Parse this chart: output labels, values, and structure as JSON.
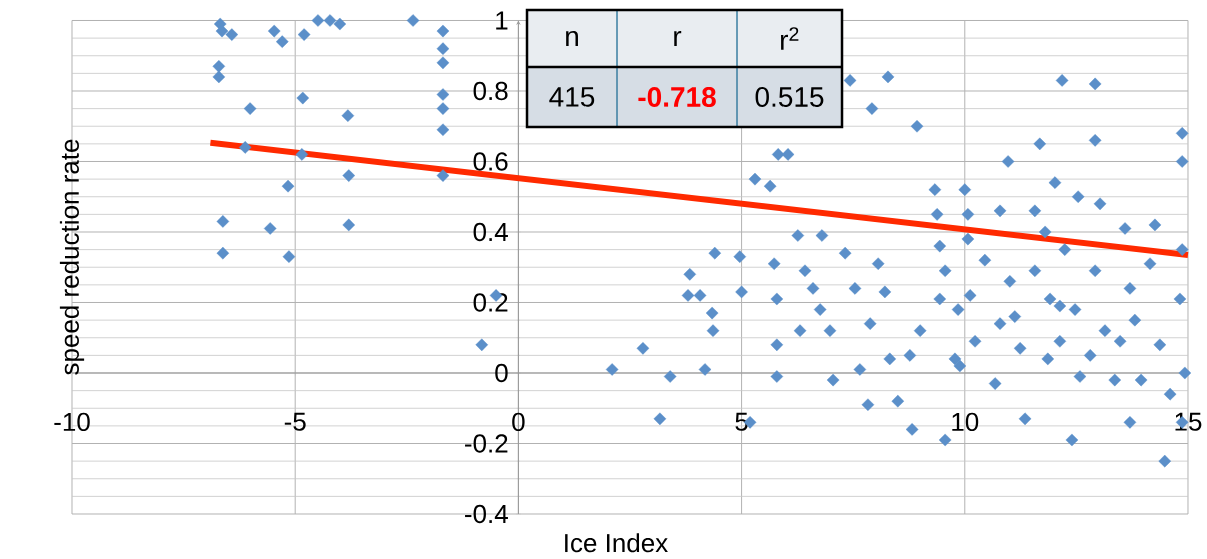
{
  "chart_data": {
    "type": "scatter",
    "xlabel": "Ice Index",
    "ylabel": "speed reduction rate",
    "annotations": [
      "n",
      "r",
      "r$^{2}$",
      "415",
      "-0.718",
      "0.515"
    ],
    "xlim": [
      -10,
      15
    ],
    "ylim": [
      -0.4,
      1
    ],
    "xticks": [
      -10,
      -5,
      0,
      5,
      10,
      15
    ],
    "yticks": [
      -0.4,
      -0.2,
      0,
      0.2,
      0.4,
      0.6,
      0.8,
      1
    ],
    "grid": true,
    "series": [
      {
        "type": "scatter",
        "marker": "diamond",
        "color": "#5b8fc9",
        "x": [
          -6.68,
          -6.64,
          -6.42,
          -6.71,
          -6.71,
          -6.01,
          -6.12,
          -6.62,
          -6.62,
          -5.56,
          -5.14,
          -5.16,
          -5.47,
          -5.29,
          -4.83,
          -4.85,
          -4.49,
          -4.22,
          -4.0,
          -3.82,
          -3.8,
          -3.8,
          -2.36,
          -4.8,
          -1.69,
          -1.69,
          -1.69,
          -1.69,
          -1.69,
          -1.69,
          -1.69,
          -0.5,
          -0.82,
          2.1,
          2.79,
          3.4,
          3.17,
          3.84,
          3.8,
          4.07,
          4.34,
          4.36,
          4.4,
          4.18,
          4.96,
          5.0,
          5.19,
          5.3,
          5.64,
          5.82,
          6.04,
          5.73,
          5.79,
          5.79,
          5.79,
          6.26,
          6.31,
          6.42,
          6.6,
          6.76,
          6.8,
          6.98,
          7.05,
          7.32,
          7.43,
          7.54,
          7.65,
          7.83,
          7.88,
          7.92,
          8.06,
          8.21,
          8.28,
          8.32,
          8.5,
          8.77,
          8.82,
          8.93,
          9.0,
          9.33,
          9.38,
          9.44,
          9.44,
          9.56,
          9.56,
          9.85,
          10.0,
          10.07,
          10.07,
          10.12,
          10.23,
          10.45,
          10.79,
          10.97,
          11.01,
          11.24,
          11.35,
          11.57,
          11.68,
          11.8,
          11.91,
          12.02,
          12.13,
          12.18,
          12.24,
          12.4,
          12.47,
          12.54,
          12.58,
          12.92,
          12.92,
          12.92,
          13.03,
          13.14,
          13.36,
          13.59,
          13.81,
          13.95,
          14.15,
          14.26,
          14.37,
          14.48,
          14.6,
          14.82,
          14.87,
          14.87,
          14.87,
          14.93,
          14.87,
          13.7,
          11.86,
          12.81,
          10.68,
          9.78,
          13.7,
          11.57,
          11.12,
          12.13,
          9.89,
          13.48,
          10.79
        ],
        "values": [
          0.99,
          0.97,
          0.96,
          0.87,
          0.84,
          0.75,
          0.64,
          0.43,
          0.34,
          0.41,
          0.33,
          0.53,
          0.97,
          0.94,
          0.78,
          0.62,
          1.0,
          1.0,
          0.99,
          0.73,
          0.56,
          0.42,
          1.0,
          0.96,
          0.97,
          0.92,
          0.88,
          0.79,
          0.75,
          0.69,
          0.56,
          0.22,
          0.08,
          0.01,
          0.07,
          -0.01,
          -0.13,
          0.28,
          0.22,
          0.22,
          0.17,
          0.12,
          0.34,
          0.01,
          0.33,
          0.23,
          -0.14,
          0.55,
          0.53,
          0.62,
          0.62,
          0.31,
          0.21,
          0.08,
          -0.01,
          0.39,
          0.12,
          0.29,
          0.24,
          0.18,
          0.39,
          0.12,
          -0.02,
          0.34,
          0.83,
          0.24,
          0.01,
          -0.09,
          0.14,
          0.75,
          0.31,
          0.23,
          0.84,
          0.04,
          -0.08,
          0.05,
          -0.16,
          0.7,
          0.12,
          0.52,
          0.45,
          0.36,
          0.21,
          -0.19,
          0.29,
          0.18,
          0.52,
          0.45,
          0.38,
          0.22,
          0.09,
          0.32,
          0.14,
          0.6,
          0.26,
          0.07,
          -0.13,
          0.46,
          0.65,
          0.4,
          0.21,
          0.54,
          0.09,
          0.83,
          0.35,
          -0.19,
          0.18,
          0.5,
          -0.01,
          0.66,
          0.82,
          0.29,
          0.48,
          0.12,
          -0.02,
          0.41,
          0.15,
          -0.02,
          0.31,
          0.42,
          0.08,
          -0.25,
          -0.06,
          0.21,
          0.35,
          0.68,
          0.6,
          0.0,
          -0.14,
          -0.14,
          0.04,
          0.05,
          -0.03,
          0.04,
          0.24,
          0.29,
          0.16,
          0.19,
          0.02,
          0.09,
          0.46
        ]
      },
      {
        "type": "line",
        "marker": "none",
        "color": "#ff2a00",
        "x": [
          -6.9,
          15
        ],
        "values": [
          0.653,
          0.335
        ]
      }
    ]
  }
}
